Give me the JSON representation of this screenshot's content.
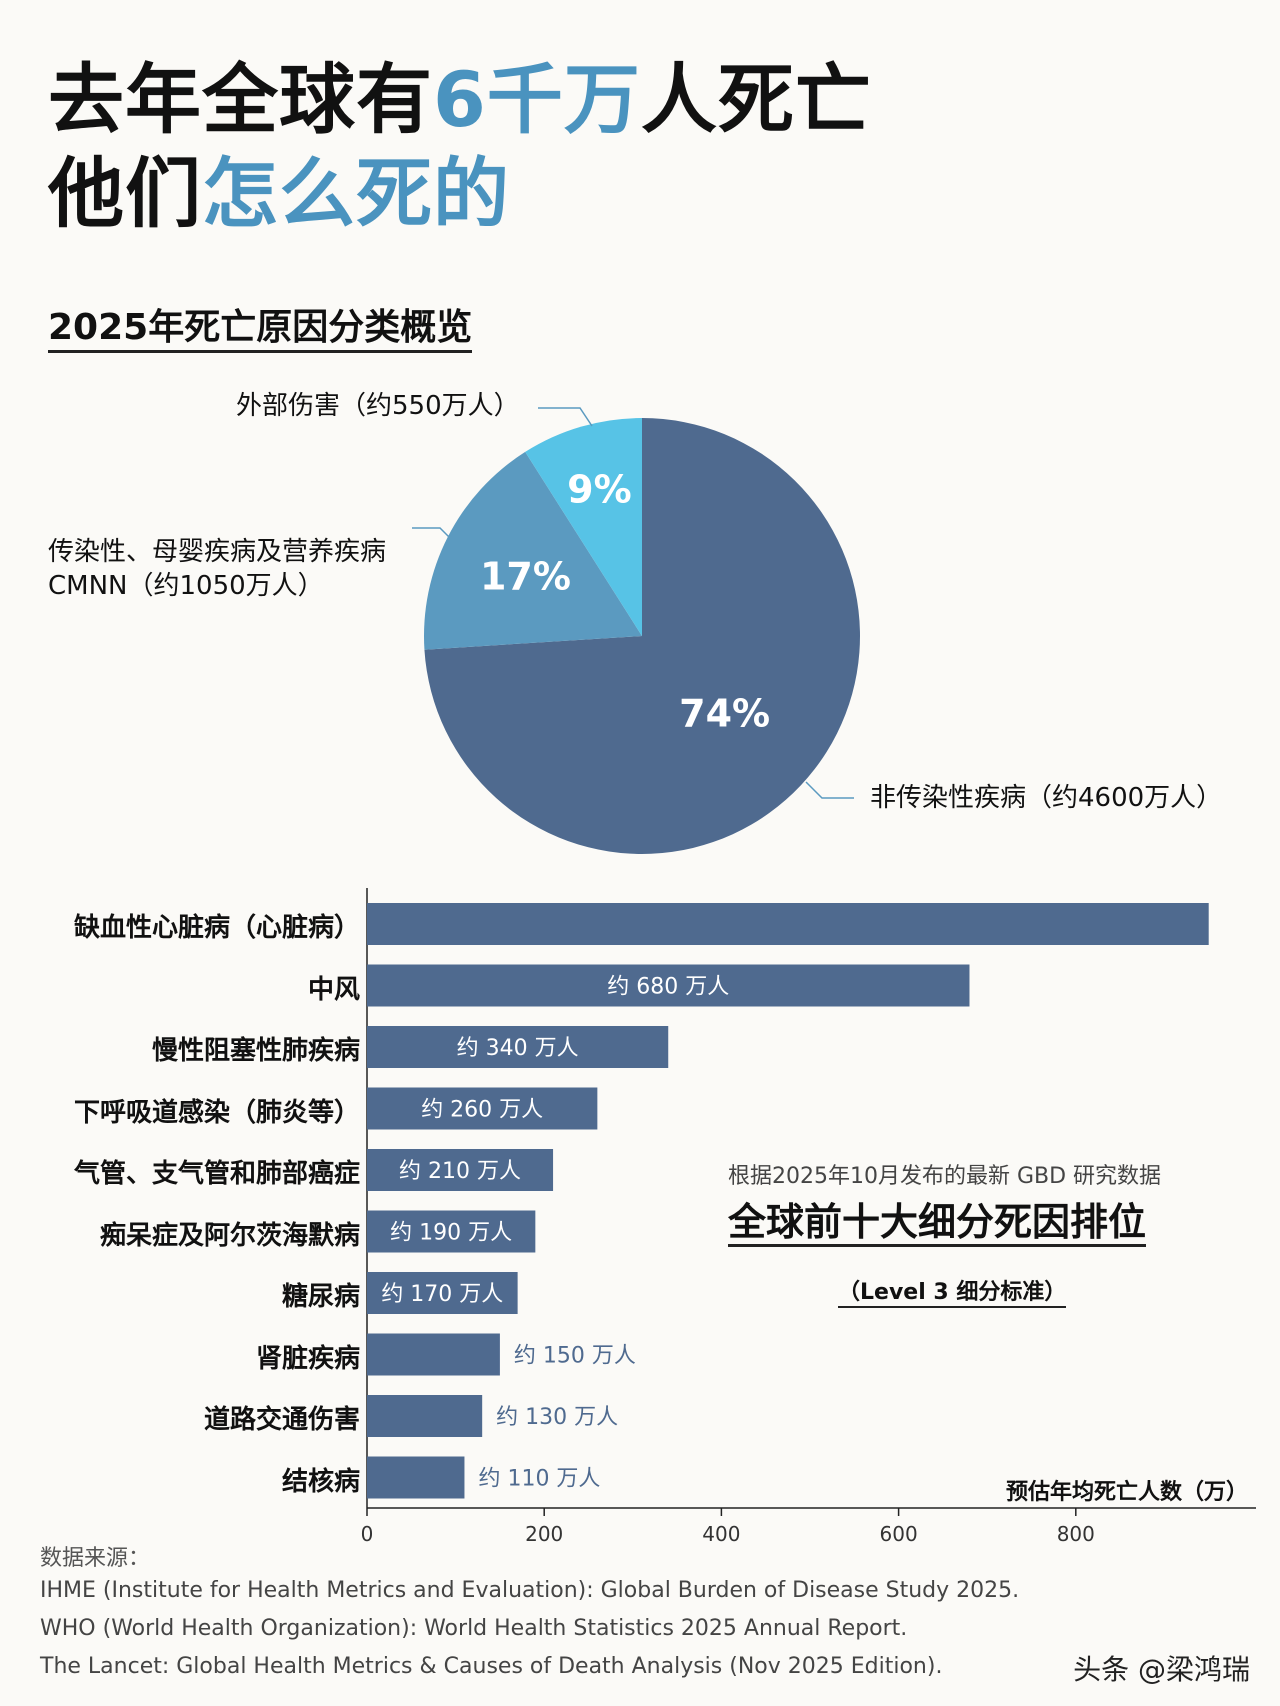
{
  "header": {
    "line1_pre": "去年全球有",
    "line1_accent": "6千万",
    "line1_post": "人死亡",
    "line2_pre": "他们",
    "line2_accent": "怎么死的"
  },
  "section_title": "2025年死亡原因分类概览",
  "chart_data": [
    {
      "type": "pie",
      "title": "2025年死亡原因分类概览",
      "slices": [
        {
          "label": "非传染性疾病（约4600万人）",
          "percent": 74,
          "percent_label": "74%",
          "color": "#4f6a8f"
        },
        {
          "label": "传染性、母婴疾病及营养疾病 CMNN（约1050万人）",
          "percent": 17,
          "percent_label": "17%",
          "color": "#5b9ac0"
        },
        {
          "label": "外部伤害（约550万人）",
          "percent": 9,
          "percent_label": "9%",
          "color": "#57c3e6"
        }
      ]
    },
    {
      "type": "bar",
      "orientation": "horizontal",
      "title": "全球前十大细分死因排位",
      "categories": [
        "缺血性心脏病（心脏病）",
        "中风",
        "慢性阻塞性肺疾病",
        "下呼吸道感染（肺炎等）",
        "气管、支气管和肺部癌症",
        "痴呆症及阿尔茨海默病",
        "糖尿病",
        "肾脏疾病",
        "道路交通伤害",
        "结核病"
      ],
      "values": [
        950,
        680,
        340,
        260,
        210,
        190,
        170,
        150,
        130,
        110
      ],
      "value_labels": [
        "",
        "约 680 万人",
        "约 340 万人",
        "约 260 万人",
        "约 210 万人",
        "约 190 万人",
        "约 170 万人",
        "约 150 万人",
        "约 130 万人",
        "约 110 万人"
      ],
      "xlabel": "预估年均死亡人数（万）",
      "xticks": [
        0,
        200,
        400,
        600,
        800
      ],
      "xlim": [
        0,
        1000
      ],
      "bar_color": "#4f6a8f"
    }
  ],
  "pie_labels": {
    "external": "外部伤害（约550万人）",
    "cmnn_line1": "传染性、母婴疾病及营养疾病",
    "cmnn_line2": "CMNN（约1050万人）",
    "ncd": "非传染性疾病（约4600万人）"
  },
  "bar_note": {
    "source_line": "根据2025年10月发布的最新 GBD 研究数据",
    "heading": "全球前十大细分死因排位",
    "level": "（Level 3 细分标准）"
  },
  "sources": {
    "heading": "数据来源：",
    "lines": [
      "IHME (Institute for Health Metrics and Evaluation): Global Burden of Disease Study 2025.",
      "WHO (World Health Organization): World Health Statistics 2025 Annual Report.",
      "The Lancet: Global Health Metrics & Causes of Death Analysis (Nov 2025 Edition)."
    ]
  },
  "watermark": "头条 @梁鸿瑞"
}
